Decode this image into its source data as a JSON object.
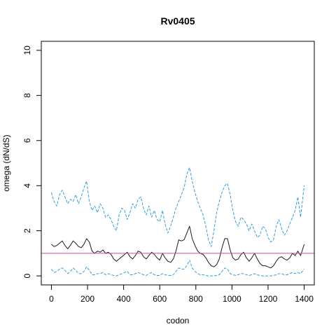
{
  "chart_data": {
    "type": "line",
    "title": "Rv0405",
    "xlabel": "codon",
    "ylabel": "omega (dN/dS)",
    "xlim": [
      -56,
      1456
    ],
    "ylim": [
      -0.4,
      10.4
    ],
    "x_ticks": [
      "0",
      "200",
      "400",
      "600",
      "800",
      "1000",
      "1200",
      "1400"
    ],
    "y_ticks": [
      "0",
      "2",
      "4",
      "6",
      "8",
      "10"
    ],
    "reference_line": {
      "y": 1,
      "color": "#c64fa0"
    },
    "grid": false,
    "legend": "none",
    "series": [
      {
        "role": "upper",
        "style": "dashed",
        "color": "#2e9fe0",
        "x": [
          0,
          15,
          30,
          45,
          60,
          75,
          90,
          105,
          120,
          135,
          150,
          165,
          180,
          195,
          210,
          225,
          240,
          255,
          270,
          285,
          300,
          315,
          330,
          345,
          360,
          375,
          390,
          405,
          420,
          435,
          450,
          465,
          480,
          495,
          510,
          525,
          540,
          555,
          570,
          585,
          600,
          615,
          630,
          645,
          660,
          675,
          690,
          705,
          720,
          735,
          750,
          765,
          780,
          795,
          810,
          825,
          840,
          855,
          870,
          885,
          900,
          915,
          930,
          945,
          960,
          975,
          990,
          1005,
          1020,
          1035,
          1050,
          1065,
          1080,
          1095,
          1110,
          1125,
          1140,
          1155,
          1170,
          1185,
          1200,
          1215,
          1230,
          1245,
          1260,
          1275,
          1290,
          1305,
          1320,
          1335,
          1350,
          1365,
          1380,
          1400
        ],
        "y": [
          3.7,
          3.3,
          3.1,
          3.6,
          3.8,
          3.5,
          3.2,
          3.4,
          3.3,
          3.6,
          3.2,
          3.5,
          3.9,
          4.2,
          3.3,
          2.9,
          3.1,
          2.8,
          3.2,
          3.0,
          2.6,
          2.7,
          2.5,
          2.2,
          2.0,
          2.7,
          3.0,
          2.9,
          2.5,
          2.8,
          3.2,
          3.0,
          3.4,
          3.5,
          3.0,
          2.7,
          3.1,
          2.6,
          2.9,
          2.5,
          2.4,
          2.9,
          2.3,
          1.9,
          2.2,
          2.6,
          3.0,
          3.3,
          3.6,
          3.9,
          4.5,
          4.8,
          4.2,
          3.7,
          3.3,
          3.0,
          2.7,
          2.2,
          1.6,
          1.3,
          2.0,
          2.8,
          3.3,
          3.7,
          4.0,
          4.1,
          3.6,
          2.9,
          2.4,
          2.2,
          2.6,
          2.5,
          2.3,
          2.0,
          2.3,
          2.0,
          1.7,
          1.8,
          2.2,
          2.1,
          1.7,
          1.5,
          1.6,
          2.2,
          2.5,
          2.1,
          1.8,
          2.0,
          2.3,
          2.6,
          2.9,
          3.5,
          2.6,
          4.0
        ]
      },
      {
        "role": "estimate",
        "style": "solid",
        "color": "#1a1a1a",
        "x": [
          0,
          15,
          30,
          45,
          60,
          75,
          90,
          105,
          120,
          135,
          150,
          165,
          180,
          195,
          210,
          225,
          240,
          255,
          270,
          285,
          300,
          315,
          330,
          345,
          360,
          375,
          390,
          405,
          420,
          435,
          450,
          465,
          480,
          495,
          510,
          525,
          540,
          555,
          570,
          585,
          600,
          615,
          630,
          645,
          660,
          675,
          690,
          705,
          720,
          735,
          750,
          765,
          780,
          795,
          810,
          825,
          840,
          855,
          870,
          885,
          900,
          915,
          930,
          945,
          960,
          975,
          990,
          1005,
          1020,
          1035,
          1050,
          1065,
          1080,
          1095,
          1110,
          1125,
          1140,
          1155,
          1170,
          1185,
          1200,
          1215,
          1230,
          1245,
          1260,
          1275,
          1290,
          1305,
          1320,
          1335,
          1350,
          1365,
          1380,
          1400
        ],
        "y": [
          1.4,
          1.3,
          1.35,
          1.45,
          1.55,
          1.35,
          1.2,
          1.35,
          1.55,
          1.45,
          1.3,
          1.25,
          1.4,
          1.65,
          1.5,
          1.1,
          1.0,
          1.1,
          1.05,
          1.15,
          1.0,
          1.05,
          0.95,
          0.75,
          0.65,
          0.75,
          0.85,
          0.95,
          1.05,
          0.85,
          0.75,
          0.9,
          1.1,
          1.05,
          0.85,
          0.75,
          0.9,
          1.05,
          0.95,
          0.8,
          0.7,
          1.0,
          0.8,
          0.65,
          0.6,
          0.75,
          1.1,
          1.6,
          1.55,
          1.6,
          1.9,
          2.2,
          1.65,
          1.35,
          1.1,
          1.0,
          0.95,
          0.8,
          0.6,
          0.45,
          0.4,
          0.5,
          0.75,
          1.25,
          1.65,
          1.65,
          1.15,
          0.8,
          0.7,
          0.75,
          0.95,
          1.05,
          0.8,
          0.65,
          0.8,
          1.0,
          0.75,
          0.55,
          0.45,
          0.45,
          0.4,
          0.35,
          0.45,
          0.65,
          0.8,
          0.85,
          0.75,
          0.7,
          0.8,
          1.0,
          0.9,
          1.1,
          0.9,
          1.4
        ]
      },
      {
        "role": "lower",
        "style": "dashed",
        "color": "#2e9fe0",
        "x": [
          0,
          15,
          30,
          45,
          60,
          75,
          90,
          105,
          120,
          135,
          150,
          165,
          180,
          195,
          210,
          225,
          240,
          255,
          270,
          285,
          300,
          315,
          330,
          345,
          360,
          375,
          390,
          405,
          420,
          435,
          450,
          465,
          480,
          495,
          510,
          525,
          540,
          555,
          570,
          585,
          600,
          615,
          630,
          645,
          660,
          675,
          690,
          705,
          720,
          735,
          750,
          765,
          780,
          795,
          810,
          825,
          840,
          855,
          870,
          885,
          900,
          915,
          930,
          945,
          960,
          975,
          990,
          1005,
          1020,
          1035,
          1050,
          1065,
          1080,
          1095,
          1110,
          1125,
          1140,
          1155,
          1170,
          1185,
          1200,
          1215,
          1230,
          1245,
          1260,
          1275,
          1290,
          1305,
          1320,
          1335,
          1350,
          1365,
          1380,
          1400
        ],
        "y": [
          0.3,
          0.15,
          0.2,
          0.3,
          0.35,
          0.25,
          0.1,
          0.2,
          0.35,
          0.25,
          0.1,
          0.1,
          0.2,
          0.4,
          0.25,
          0.05,
          0.05,
          0.1,
          0.1,
          0.15,
          0.05,
          0.1,
          0.05,
          0.02,
          0.0,
          0.05,
          0.1,
          0.15,
          0.2,
          0.05,
          0.05,
          0.1,
          0.15,
          0.1,
          0.05,
          0.02,
          0.1,
          0.15,
          0.05,
          0.02,
          0.02,
          0.1,
          0.05,
          0.02,
          0.02,
          0.05,
          0.2,
          0.35,
          0.3,
          0.3,
          0.45,
          0.7,
          0.35,
          0.2,
          0.1,
          0.05,
          0.05,
          0.02,
          0.0,
          0.0,
          0.0,
          0.02,
          0.05,
          0.2,
          0.35,
          0.3,
          0.1,
          0.05,
          0.02,
          0.05,
          0.1,
          0.1,
          0.05,
          0.02,
          0.05,
          0.1,
          0.05,
          0.02,
          0.0,
          0.0,
          0.0,
          0.0,
          0.02,
          0.05,
          0.1,
          0.1,
          0.05,
          0.05,
          0.1,
          0.15,
          0.1,
          0.15,
          0.1,
          0.3
        ]
      }
    ]
  }
}
